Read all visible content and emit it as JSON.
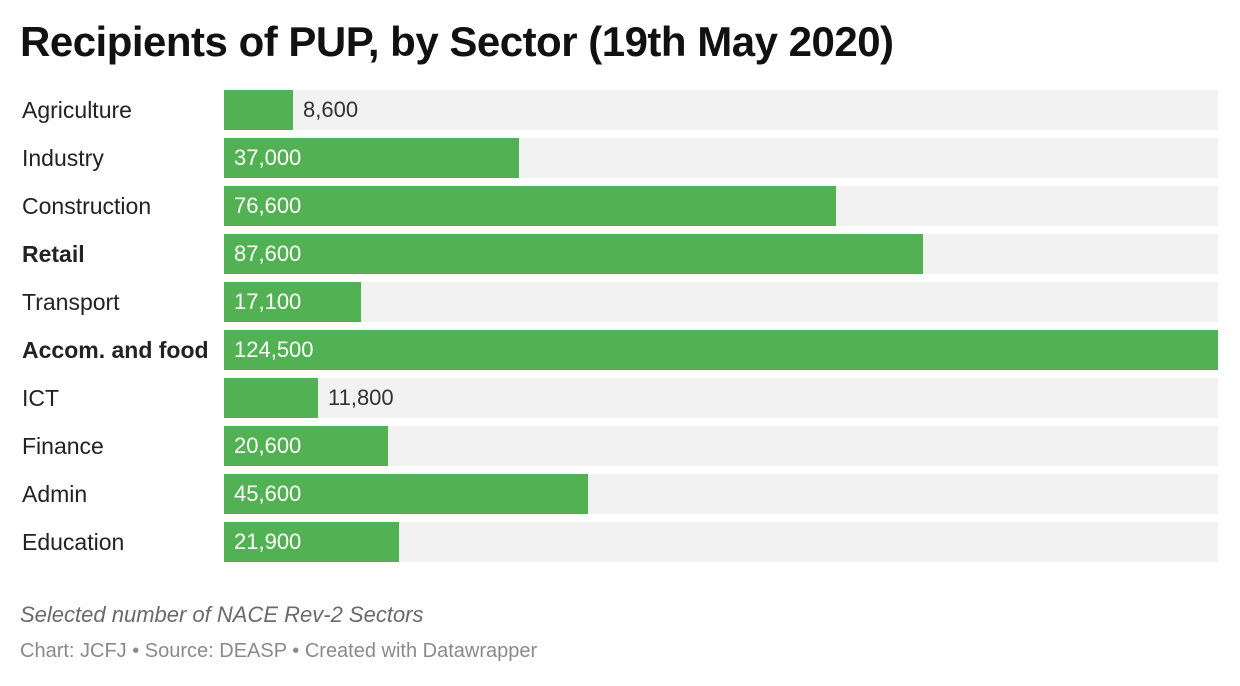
{
  "title": "Recipients of PUP, by Sector (19th May 2020)",
  "notes": "Selected number of NACE Rev-2 Sectors",
  "footer": "Chart: JCFJ • Source: DEASP • Created with Datawrapper",
  "colors": {
    "bar": "#52b152",
    "track": "#f2f2f2",
    "value_inside": "#ffffff",
    "value_outside": "#333333"
  },
  "chart_data": {
    "type": "bar",
    "orientation": "horizontal",
    "title": "Recipients of PUP, by Sector (19th May 2020)",
    "xlim": [
      0,
      124500
    ],
    "categories": [
      "Agriculture",
      "Industry",
      "Construction",
      "Retail",
      "Transport",
      "Accom. and food",
      "ICT",
      "Finance",
      "Admin",
      "Education"
    ],
    "values": [
      8600,
      37000,
      76600,
      87600,
      17100,
      124500,
      11800,
      20600,
      45600,
      21900
    ],
    "value_labels": [
      "8,600",
      "37,000",
      "76,600",
      "87,600",
      "17,100",
      "124,500",
      "11,800",
      "20,600",
      "45,600",
      "21,900"
    ],
    "bold_categories": [
      "Retail",
      "Accom. and food"
    ]
  }
}
